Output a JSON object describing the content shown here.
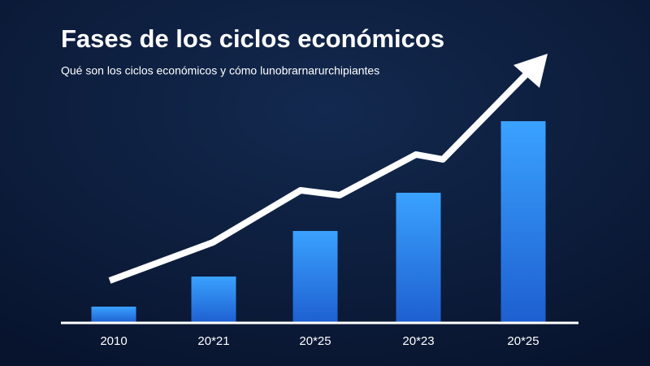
{
  "chart_data": {
    "type": "bar",
    "title": "Fases de los ciclos económicos",
    "subtitle": "Qué son los ciclos económicos y cómo lunobrarnarurchipiantes",
    "categories": [
      "2010",
      "20*21",
      "20*25",
      "20*23",
      "20*25"
    ],
    "values": [
      20,
      57,
      113,
      160,
      248
    ],
    "color": "#2f8cf0"
  }
}
